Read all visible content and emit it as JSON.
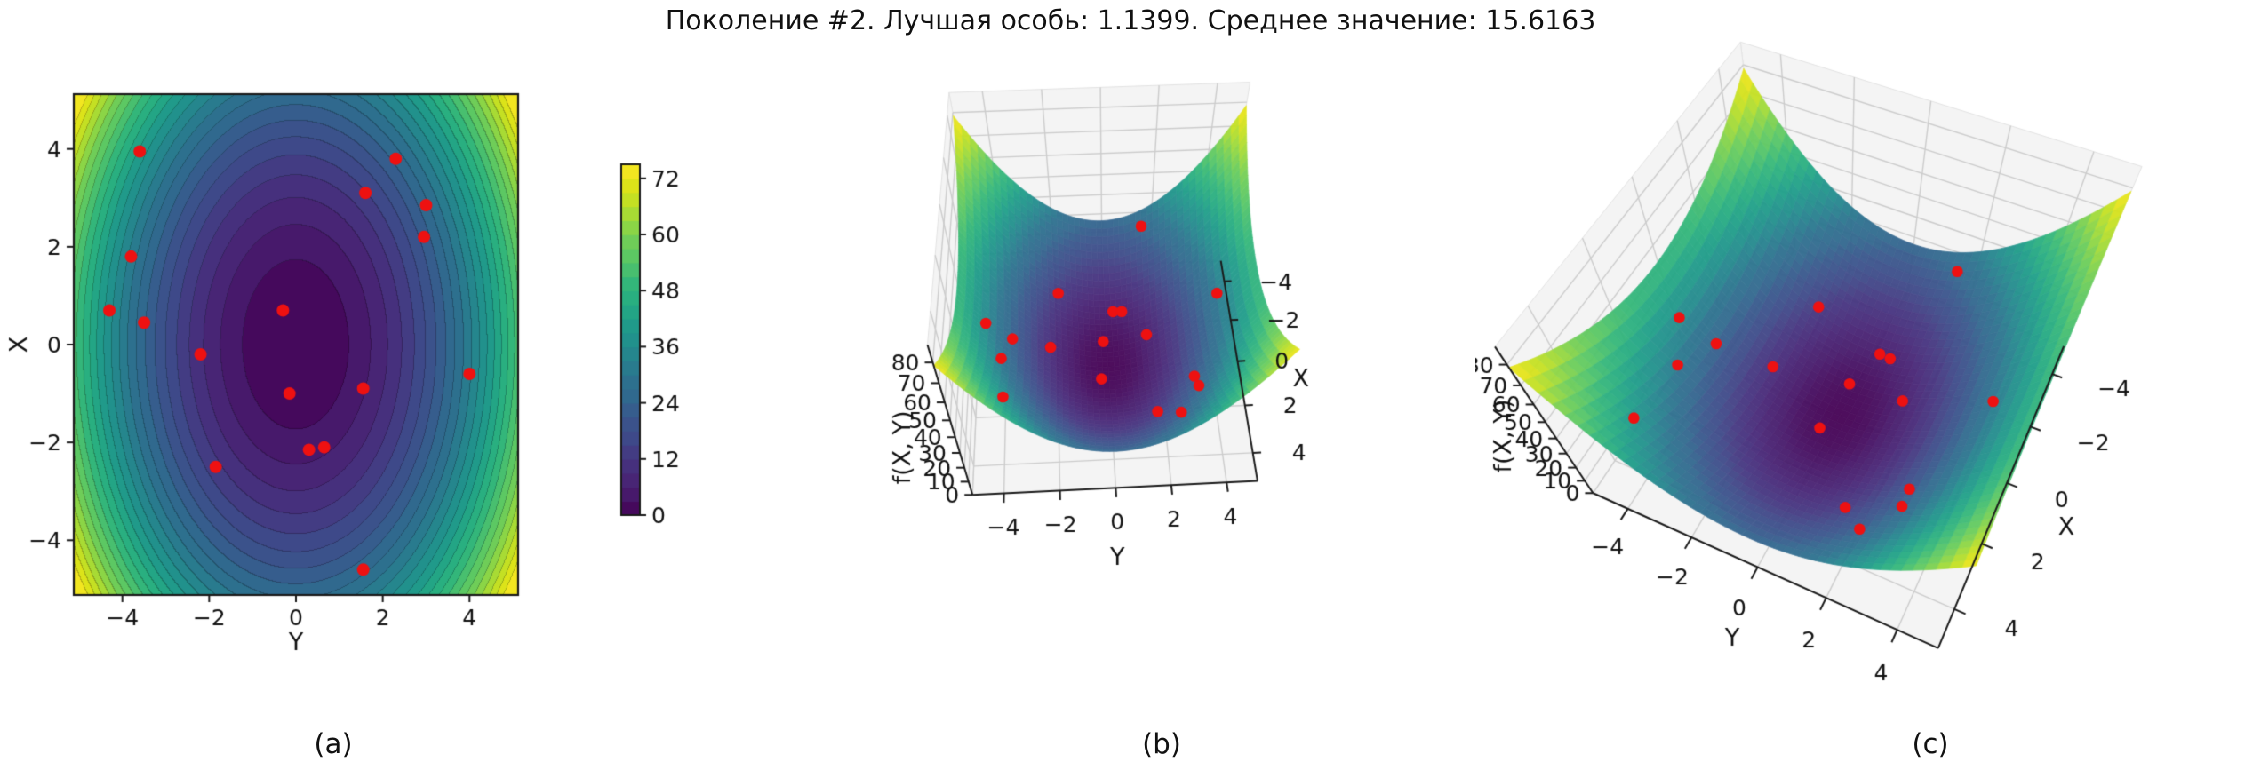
{
  "figure": {
    "title": "Поколение #2. Лучшая особь: 1.1399. Среднее значение: 15.6163",
    "generation": 2,
    "best_individual": 1.1399,
    "mean_value": 15.6163
  },
  "captions": {
    "a": "(a)",
    "b": "(b)",
    "c": "(c)"
  },
  "colors": {
    "point_red": "#ee1111",
    "axis_text": "#111111",
    "axis_line": "#1a1a1a",
    "pane_fill": "#f4f4f4",
    "pane_grid": "#cccccc",
    "colormap": "viridis"
  },
  "chart_data": [
    {
      "id": "a",
      "type": "heatmap",
      "subtype": "filled-contour",
      "function": "f(X, Y) = X^2 + 2*Y^2",
      "xlabel": "Y",
      "ylabel": "X",
      "xlim": [
        -5.12,
        5.12
      ],
      "ylim": [
        -5.12,
        5.12
      ],
      "xticks": [
        -4,
        -2,
        0,
        2,
        4
      ],
      "yticks": [
        -4,
        -2,
        0,
        2,
        4
      ],
      "contour_levels": {
        "min": 0,
        "max": 75,
        "step": 3
      },
      "colorbar": {
        "ticks": [
          0,
          12,
          24,
          36,
          48,
          60,
          72
        ],
        "range": [
          0,
          75
        ]
      },
      "scatter_series": {
        "name": "population",
        "color": "#ee1111"
      }
    },
    {
      "id": "b",
      "type": "scatter",
      "subtype": "3d-surface-with-points",
      "function": "f(X, Y) = X^2 + 2*Y^2",
      "xlabel": "Y",
      "x2label": "X",
      "zlabel": "f(X, Y)",
      "xticks": [
        -4,
        -2,
        0,
        2,
        4
      ],
      "x2ticks": [
        -4,
        -2,
        0,
        2,
        4
      ],
      "zticks": [
        0,
        10,
        20,
        30,
        40,
        50,
        60,
        70,
        80
      ],
      "xlim": [
        -5.12,
        5.12
      ],
      "ylim": [
        -5.12,
        5.12
      ],
      "zlim": [
        0,
        88
      ],
      "view": {
        "elev_deg": 53,
        "yaw_deg": -3
      }
    },
    {
      "id": "c",
      "type": "scatter",
      "subtype": "3d-surface-with-points",
      "function": "f(X, Y) = X^2 + 2*Y^2",
      "xlabel": "Y",
      "x2label": "X",
      "zlabel": "f(X, Y)",
      "xticks": [
        -4,
        -2,
        0,
        2,
        4
      ],
      "x2ticks": [
        -4,
        -2,
        0,
        2,
        4
      ],
      "zticks": [
        0,
        10,
        20,
        30,
        40,
        50,
        60,
        70,
        80
      ],
      "xlim": [
        -5.12,
        5.12
      ],
      "ylim": [
        -5.12,
        5.12
      ],
      "zlim": [
        0,
        88
      ],
      "view": {
        "elev_deg": 55,
        "yaw_deg": 25
      }
    }
  ],
  "population_points_YX": [
    [
      -3.6,
      3.95
    ],
    [
      2.3,
      3.8
    ],
    [
      1.6,
      3.1
    ],
    [
      3.0,
      2.85
    ],
    [
      2.95,
      2.2
    ],
    [
      -3.8,
      1.8
    ],
    [
      -4.3,
      0.7
    ],
    [
      -3.5,
      0.45
    ],
    [
      -0.3,
      0.7
    ],
    [
      -2.2,
      -0.2
    ],
    [
      -0.15,
      -1.0
    ],
    [
      1.55,
      -0.9
    ],
    [
      4.0,
      -0.6
    ],
    [
      0.3,
      -2.15
    ],
    [
      0.65,
      -2.1
    ],
    [
      -1.85,
      -2.5
    ],
    [
      1.55,
      -4.6
    ]
  ]
}
